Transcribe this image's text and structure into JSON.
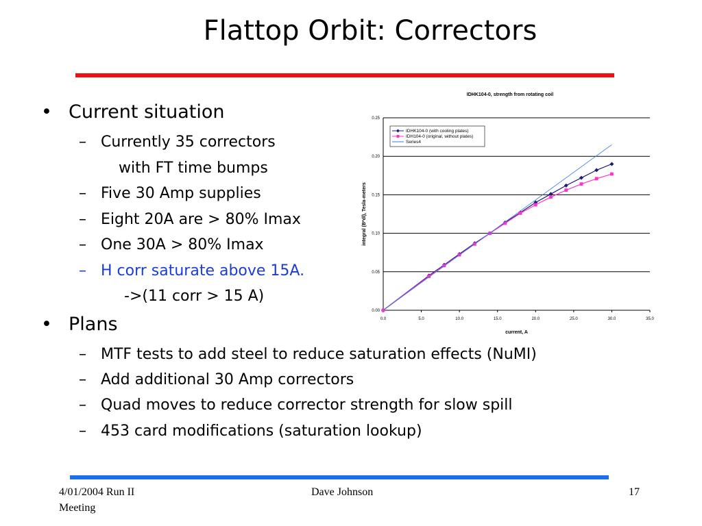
{
  "slide": {
    "title": "Flattop Orbit: Correctors",
    "rule_top_color": "#ee1111",
    "rule_bottom_color": "#1a6ef0",
    "bullets": {
      "current_situation": {
        "label": "Current situation",
        "items": [
          "Currently 35 correctors",
          "with FT time bumps",
          "Five 30 Amp supplies",
          "Eight 20A are > 80% Imax",
          "One 30A > 80% Imax",
          "H corr saturate above 15A.",
          "->(11 corr > 15 A)"
        ]
      },
      "plans": {
        "label": "Plans",
        "items": [
          "MTF tests to add steel to reduce saturation effects (NuMI)",
          "Add additional 30 Amp correctors",
          "Quad moves to reduce corrector strength for slow spill",
          "453 card modifications (saturation lookup)"
        ]
      }
    },
    "footer": {
      "date_meeting_line1": "4/01/2004   Run II",
      "date_meeting_line2": "Meeting",
      "author": "Dave Johnson",
      "page_number": "17"
    }
  },
  "chart_data": {
    "type": "line",
    "title": "IDHK104-0, strength from rotating coil",
    "xlabel": "current, A",
    "ylabel": "integral (B*dl), Tesla-meters",
    "xlim": [
      0,
      35
    ],
    "ylim": [
      0,
      0.25
    ],
    "x_ticks": [
      "0.0",
      "5.0",
      "10.0",
      "15.0",
      "20.0",
      "25.0",
      "30.0",
      "35.0"
    ],
    "y_ticks": [
      "0.00",
      "0.05",
      "0.10",
      "0.15",
      "0.20",
      "0.25"
    ],
    "grid": "horizontal",
    "legend_position": "top-left",
    "series": [
      {
        "name": "IDHK104-0 (with cooling plates)",
        "color": "#1c1c7a",
        "marker": "diamond",
        "points": [
          [
            0,
            0
          ],
          [
            6,
            0.045
          ],
          [
            8,
            0.059
          ],
          [
            10,
            0.073
          ],
          [
            12,
            0.087
          ],
          [
            14,
            0.1
          ],
          [
            16,
            0.114
          ],
          [
            18,
            0.127
          ],
          [
            20,
            0.14
          ],
          [
            22,
            0.151
          ],
          [
            24,
            0.162
          ],
          [
            26,
            0.172
          ],
          [
            28,
            0.182
          ],
          [
            30,
            0.19
          ]
        ]
      },
      {
        "name": "IDH104-0 (original, without plates)",
        "color": "#ff33cc",
        "marker": "square",
        "points": [
          [
            0,
            0
          ],
          [
            6,
            0.044
          ],
          [
            8,
            0.058
          ],
          [
            10,
            0.072
          ],
          [
            12,
            0.086
          ],
          [
            14,
            0.1
          ],
          [
            16,
            0.113
          ],
          [
            18,
            0.126
          ],
          [
            20,
            0.137
          ],
          [
            22,
            0.147
          ],
          [
            24,
            0.156
          ],
          [
            26,
            0.164
          ],
          [
            28,
            0.171
          ],
          [
            30,
            0.177
          ]
        ]
      },
      {
        "name": "Series4",
        "color": "#3377ee",
        "marker": "none",
        "points": [
          [
            0,
            0
          ],
          [
            30,
            0.215
          ]
        ]
      }
    ]
  }
}
